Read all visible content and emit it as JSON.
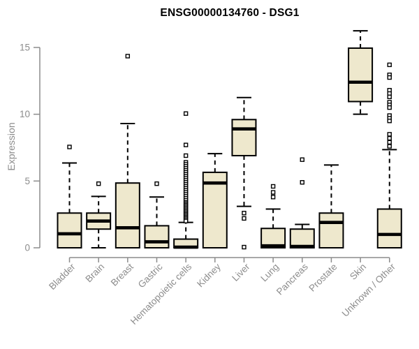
{
  "title": "ENSG00000134760 - DSG1",
  "chart_data": {
    "type": "boxplot",
    "title": "ENSG00000134760 - DSG1",
    "xlabel": "",
    "ylabel": "Expression",
    "yticks": [
      0,
      5,
      10,
      15
    ],
    "ylim": [
      0,
      16.5
    ],
    "grid": false,
    "legend": "none",
    "colors": {
      "box_fill": "#EEE8CD",
      "box_stroke": "#000000",
      "median": "#000000",
      "whisker": "#000000",
      "outlier_fill": "#FFFFFF",
      "outlier_stroke": "#000000",
      "axis": "#8C8C8C",
      "tick_label": "#8C8C8C",
      "title": "#000000",
      "background": "#FFFFFF"
    },
    "categories": [
      "Bladder",
      "Brain",
      "Breast",
      "Gastric",
      "Hematopoietic cells",
      "Kidney",
      "Liver",
      "Lung",
      "Pancreas",
      "Prostate",
      "Skin",
      "Unknown / Other"
    ],
    "series": [
      {
        "name": "Bladder",
        "whisker_low": 0,
        "q1": 0,
        "median": 1.05,
        "q3": 2.6,
        "whisker_high": 6.35,
        "outliers": [
          7.55
        ]
      },
      {
        "name": "Brain",
        "whisker_low": 0,
        "q1": 1.4,
        "median": 2.0,
        "q3": 2.6,
        "whisker_high": 3.85,
        "outliers": [
          4.8
        ]
      },
      {
        "name": "Breast",
        "whisker_low": 0,
        "q1": 0,
        "median": 1.5,
        "q3": 4.85,
        "whisker_high": 9.3,
        "outliers": [
          14.35
        ]
      },
      {
        "name": "Gastric",
        "whisker_low": 0,
        "q1": 0,
        "median": 0.45,
        "q3": 1.65,
        "whisker_high": 3.8,
        "outliers": [
          4.8
        ]
      },
      {
        "name": "Hematopoietic cells",
        "whisker_low": 0,
        "q1": 0,
        "median": 0.05,
        "q3": 0.65,
        "whisker_high": 1.9,
        "outliers": [
          10.05,
          7.7,
          6.9,
          6.4,
          6.25,
          6.1,
          5.95,
          5.8,
          5.65,
          5.5,
          5.35,
          5.2,
          5.05,
          4.9,
          4.75,
          4.6,
          4.45,
          4.3,
          4.15,
          4.0,
          3.85,
          3.7,
          3.55,
          3.4,
          3.3,
          3.2,
          3.1,
          3.0,
          2.9,
          2.8,
          2.7,
          2.6,
          2.5,
          2.4,
          2.3,
          2.2,
          2.1,
          2.0
        ]
      },
      {
        "name": "Kidney",
        "whisker_low": 0,
        "q1": 0,
        "median": 4.85,
        "q3": 5.65,
        "whisker_high": 7.05,
        "outliers": []
      },
      {
        "name": "Liver",
        "whisker_low": 3.1,
        "q1": 6.9,
        "median": 8.9,
        "q3": 9.6,
        "whisker_high": 11.25,
        "outliers": [
          2.6,
          2.2,
          0.05
        ]
      },
      {
        "name": "Lung",
        "whisker_low": 0,
        "q1": 0,
        "median": 0.15,
        "q3": 1.45,
        "whisker_high": 2.9,
        "outliers": [
          4.6,
          4.15,
          3.8
        ]
      },
      {
        "name": "Pancreas",
        "whisker_low": 0,
        "q1": 0,
        "median": 0.1,
        "q3": 1.4,
        "whisker_high": 1.75,
        "outliers": [
          6.6,
          4.9
        ]
      },
      {
        "name": "Prostate",
        "whisker_low": 0,
        "q1": 0,
        "median": 1.9,
        "q3": 2.6,
        "whisker_high": 6.2,
        "outliers": []
      },
      {
        "name": "Skin",
        "whisker_low": 10.0,
        "q1": 10.95,
        "median": 12.4,
        "q3": 14.95,
        "whisker_high": 16.25,
        "outliers": []
      },
      {
        "name": "Unknown / Other",
        "whisker_low": 0,
        "q1": 0,
        "median": 1.0,
        "q3": 2.9,
        "whisker_high": 7.35,
        "outliers": [
          13.7,
          12.95,
          12.75,
          11.8,
          11.55,
          11.3,
          10.9,
          10.7,
          10.5,
          9.9,
          9.7,
          9.5,
          8.5,
          8.2,
          7.9,
          7.6
        ]
      }
    ]
  }
}
